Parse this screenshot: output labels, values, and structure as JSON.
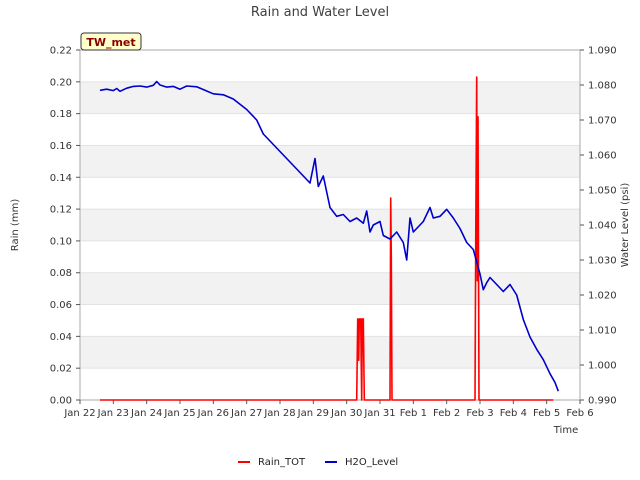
{
  "chart_data": {
    "type": "line",
    "title": "Rain and Water Level",
    "xlabel": "Time",
    "ylabel_left": "Rain (mm)",
    "ylabel_right": "Water Level (psi)",
    "badge": "TW_met",
    "x_ticks": [
      "Jan 22",
      "Jan 23",
      "Jan 24",
      "Jan 25",
      "Jan 26",
      "Jan 27",
      "Jan 28",
      "Jan 29",
      "Jan 30",
      "Jan 31",
      "Feb 1",
      "Feb 2",
      "Feb 3",
      "Feb 4",
      "Feb 5",
      "Feb 6"
    ],
    "xlim": [
      0,
      15
    ],
    "ylim_left": [
      0,
      0.22
    ],
    "ylim_right": [
      0.99,
      1.09
    ],
    "left_ticks": [
      "0.00",
      "0.02",
      "0.04",
      "0.06",
      "0.08",
      "0.10",
      "0.12",
      "0.14",
      "0.16",
      "0.18",
      "0.20",
      "0.22"
    ],
    "right_ticks": [
      "0.990",
      "1.000",
      "1.010",
      "1.020",
      "1.030",
      "1.040",
      "1.050",
      "1.060",
      "1.070",
      "1.080",
      "1.090"
    ],
    "series": [
      {
        "name": "Rain_TOT",
        "color": "#ff0000",
        "axis": "left",
        "points": [
          [
            0.6,
            0
          ],
          [
            8.3,
            0
          ],
          [
            8.33,
            0.051
          ],
          [
            8.36,
            0.025
          ],
          [
            8.38,
            0.051
          ],
          [
            8.42,
            0.051
          ],
          [
            8.45,
            0
          ],
          [
            8.47,
            0.051
          ],
          [
            8.5,
            0.051
          ],
          [
            8.53,
            0
          ],
          [
            9.3,
            0
          ],
          [
            9.32,
            0.127
          ],
          [
            9.34,
            0.09
          ],
          [
            9.36,
            0
          ],
          [
            11.85,
            0
          ],
          [
            11.87,
            0.097
          ],
          [
            11.9,
            0.203
          ],
          [
            11.92,
            0.075
          ],
          [
            11.94,
            0.178
          ],
          [
            11.97,
            0
          ],
          [
            14.2,
            0
          ]
        ]
      },
      {
        "name": "H2O_Level",
        "color": "#0000cc",
        "axis": "right",
        "points": [
          [
            0.6,
            1.0785
          ],
          [
            0.8,
            1.0788
          ],
          [
            1.0,
            1.0784
          ],
          [
            1.1,
            1.079
          ],
          [
            1.2,
            1.0782
          ],
          [
            1.4,
            1.0791
          ],
          [
            1.6,
            1.0796
          ],
          [
            1.8,
            1.0797
          ],
          [
            2.0,
            1.0794
          ],
          [
            2.2,
            1.0799
          ],
          [
            2.3,
            1.081
          ],
          [
            2.4,
            1.08
          ],
          [
            2.6,
            1.0794
          ],
          [
            2.8,
            1.0796
          ],
          [
            3.0,
            1.0788
          ],
          [
            3.2,
            1.0797
          ],
          [
            3.5,
            1.0795
          ],
          [
            3.8,
            1.0783
          ],
          [
            4.0,
            1.0775
          ],
          [
            4.3,
            1.0772
          ],
          [
            4.6,
            1.076
          ],
          [
            5.0,
            1.073
          ],
          [
            5.3,
            1.07
          ],
          [
            5.5,
            1.066
          ],
          [
            5.7,
            1.064
          ],
          [
            6.0,
            1.061
          ],
          [
            6.3,
            1.058
          ],
          [
            6.6,
            1.055
          ],
          [
            6.9,
            1.052
          ],
          [
            7.05,
            1.059
          ],
          [
            7.15,
            1.051
          ],
          [
            7.3,
            1.054
          ],
          [
            7.5,
            1.045
          ],
          [
            7.7,
            1.0425
          ],
          [
            7.9,
            1.043
          ],
          [
            8.1,
            1.041
          ],
          [
            8.3,
            1.042
          ],
          [
            8.5,
            1.0405
          ],
          [
            8.6,
            1.044
          ],
          [
            8.7,
            1.038
          ],
          [
            8.8,
            1.04
          ],
          [
            9.0,
            1.041
          ],
          [
            9.1,
            1.037
          ],
          [
            9.3,
            1.036
          ],
          [
            9.5,
            1.038
          ],
          [
            9.7,
            1.035
          ],
          [
            9.8,
            1.03
          ],
          [
            9.9,
            1.042
          ],
          [
            10.0,
            1.038
          ],
          [
            10.3,
            1.041
          ],
          [
            10.5,
            1.045
          ],
          [
            10.6,
            1.042
          ],
          [
            10.8,
            1.0425
          ],
          [
            11.0,
            1.0445
          ],
          [
            11.2,
            1.042
          ],
          [
            11.4,
            1.039
          ],
          [
            11.6,
            1.035
          ],
          [
            11.8,
            1.033
          ],
          [
            12.0,
            1.026
          ],
          [
            12.1,
            1.0215
          ],
          [
            12.2,
            1.0235
          ],
          [
            12.3,
            1.025
          ],
          [
            12.5,
            1.023
          ],
          [
            12.7,
            1.021
          ],
          [
            12.9,
            1.023
          ],
          [
            13.1,
            1.02
          ],
          [
            13.3,
            1.013
          ],
          [
            13.5,
            1.008
          ],
          [
            13.7,
            1.0045
          ],
          [
            13.9,
            1.0015
          ],
          [
            14.1,
            0.9975
          ],
          [
            14.25,
            0.995
          ],
          [
            14.35,
            0.9925
          ]
        ]
      }
    ]
  }
}
